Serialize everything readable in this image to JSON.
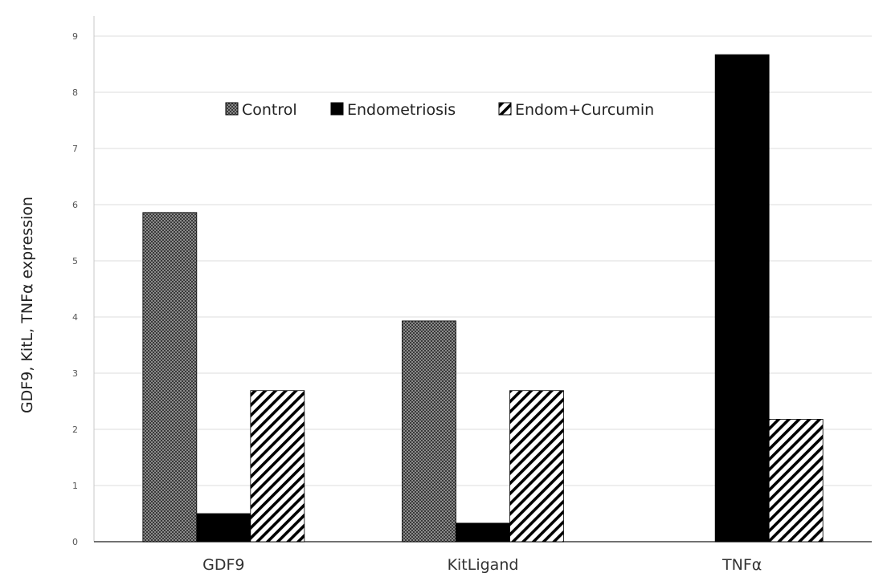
{
  "chart_data": {
    "type": "bar",
    "title": "",
    "xlabel": "",
    "ylabel": "GDF9, KitL, TNFα expression",
    "ylim": [
      0,
      9
    ],
    "yticks": [
      0,
      1,
      2,
      3,
      4,
      5,
      6,
      7,
      8,
      9
    ],
    "grid": true,
    "legend_position": "top",
    "categories": [
      "GDF9",
      "KitLigand",
      "TNFα"
    ],
    "series": [
      {
        "name": "Control",
        "values": [
          5.86,
          3.93,
          0
        ],
        "pattern": "crosshatch",
        "color": "#555555"
      },
      {
        "name": "Endometriosis",
        "values": [
          0.5,
          0.33,
          8.67
        ],
        "pattern": "solid",
        "color": "#000000"
      },
      {
        "name": "Endom+Curcumin",
        "values": [
          2.69,
          2.69,
          2.18
        ],
        "pattern": "diagonal",
        "color": "#000000"
      }
    ]
  }
}
